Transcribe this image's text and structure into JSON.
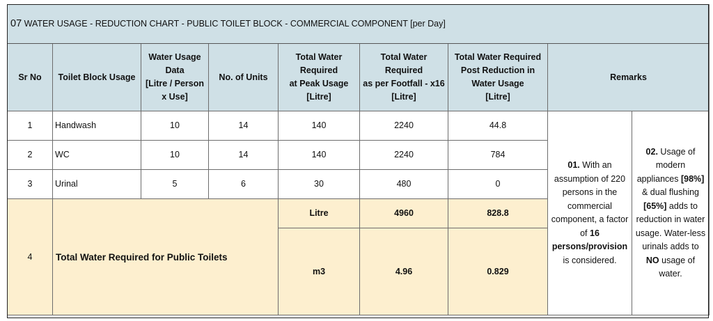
{
  "title": {
    "number": "07",
    "text": "WATER USAGE - REDUCTION CHART - PUBLIC TOILET BLOCK - COMMERCIAL COMPONENT [per Day]"
  },
  "headers": {
    "sr_no": "Sr No",
    "toilet_block_usage": "Toilet Block Usage",
    "water_usage_data": [
      "Water Usage",
      "Data",
      "[Litre / Person",
      "x Use]"
    ],
    "no_of_units": "No. of Units",
    "total_peak": [
      "Total Water",
      "Required",
      "at Peak Usage",
      "[Litre]"
    ],
    "total_footfall": [
      "Total Water",
      "Required",
      "as per Footfall - x16",
      "[Litre]"
    ],
    "total_post_reduction": [
      "Total Water Required",
      "Post Reduction in",
      "Water Usage",
      "[Litre]"
    ],
    "remarks": "Remarks"
  },
  "rows": [
    {
      "sr": "1",
      "usage": "Handwash",
      "data": "10",
      "units": "14",
      "peak": "140",
      "footfall": "2240",
      "post": "44.8"
    },
    {
      "sr": "2",
      "usage": "WC",
      "data": "10",
      "units": "14",
      "peak": "140",
      "footfall": "2240",
      "post": "784"
    },
    {
      "sr": "3",
      "usage": "Urinal",
      "data": "5",
      "units": "6",
      "peak": "30",
      "footfall": "480",
      "post": "0"
    }
  ],
  "total": {
    "sr": "4",
    "label": "Total Water Required for Public Toilets",
    "litre": {
      "unit": "Litre",
      "footfall": "4960",
      "post": "828.8"
    },
    "m3": {
      "unit": "m3",
      "footfall": "4.96",
      "post": "0.829"
    }
  },
  "remark1": {
    "num": "01.",
    "text1": " With an assumption of 220 persons in the commercial component, a factor of ",
    "bold": "16 persons/provision",
    "text2": " is considered."
  },
  "remark2": {
    "num": "02.",
    "t1": " Usage of modern appliances ",
    "b1": "[98%]",
    "t2": " & dual flushing ",
    "b2": "[65%]",
    "t3": " adds to reduction in water usage. Water-less urinals adds to ",
    "b3": "NO",
    "t4": " usage of water."
  },
  "colors": {
    "header_bg": "#cfe0e6",
    "total_bg": "#fdefcf",
    "border": "#6d6d6d"
  }
}
